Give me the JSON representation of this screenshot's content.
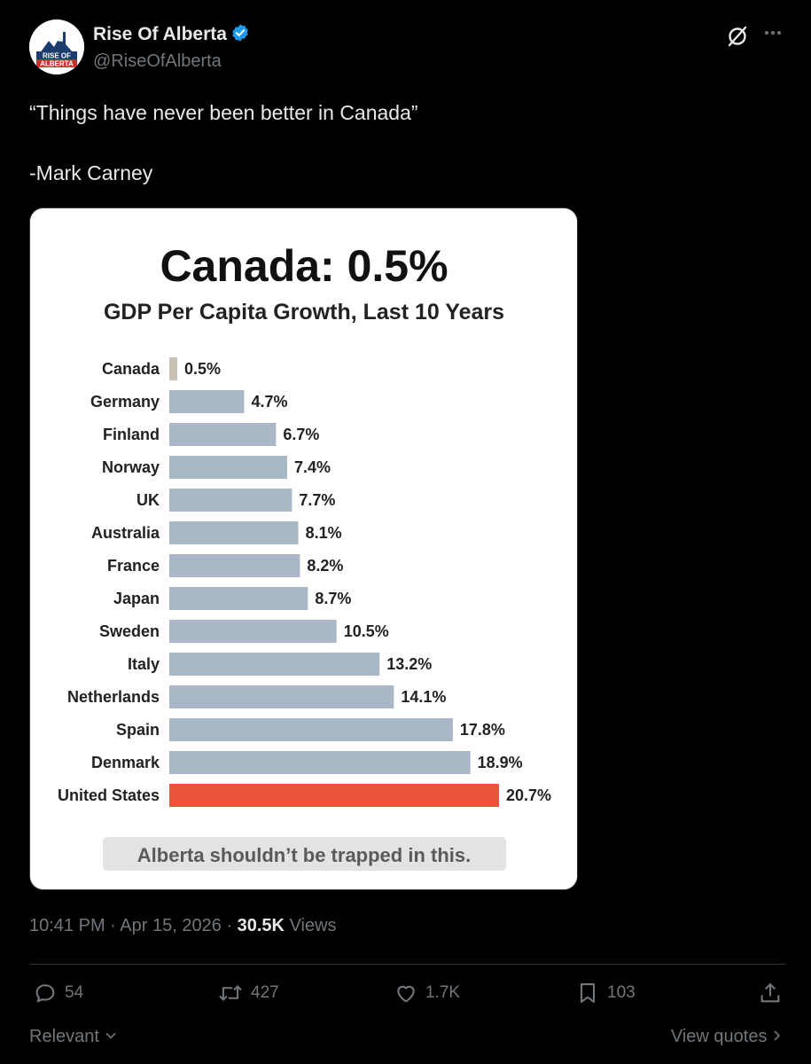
{
  "author": {
    "display_name": "Rise Of Alberta",
    "handle": "@RiseOfAlberta",
    "avatar_text_line1": "RISE OF",
    "avatar_text_line2": "ALBERTA"
  },
  "tweet": {
    "quote_line": "“Things have never been better in Canada”",
    "attribution_line": "-Mark Carney"
  },
  "chart_data": {
    "type": "bar",
    "orientation": "horizontal",
    "title": "Canada: 0.5%",
    "subtitle": "GDP Per Capita Growth, Last 10 Years",
    "categories": [
      "Canada",
      "Germany",
      "Finland",
      "Norway",
      "UK",
      "Australia",
      "France",
      "Japan",
      "Sweden",
      "Italy",
      "Netherlands",
      "Spain",
      "Denmark",
      "United States"
    ],
    "values": [
      0.5,
      4.7,
      6.7,
      7.4,
      7.7,
      8.1,
      8.2,
      8.7,
      10.5,
      13.2,
      14.1,
      17.8,
      18.9,
      20.7
    ],
    "labels": [
      "0.5%",
      "4.7%",
      "6.7%",
      "7.4%",
      "7.7%",
      "8.1%",
      "8.2%",
      "8.7%",
      "10.5%",
      "13.2%",
      "14.1%",
      "17.8%",
      "18.9%",
      "20.7%"
    ],
    "colors": {
      "canada": "#c8c2b4",
      "default": "#a9b7c6",
      "highlight": "#e8553a"
    },
    "highlight_categories": [
      "United States"
    ],
    "xlim": [
      0,
      20.7
    ],
    "footer": "Alberta shouldn’t be trapped in this."
  },
  "meta": {
    "time": "10:41 PM",
    "date": "Apr 15, 2026",
    "separator": "·",
    "views_count": "30.5K",
    "views_label": "Views"
  },
  "actions": {
    "replies": "54",
    "reposts": "427",
    "likes": "1.7K",
    "bookmarks": "103"
  },
  "footer": {
    "sort_label": "Relevant",
    "view_quotes_label": "View quotes"
  }
}
